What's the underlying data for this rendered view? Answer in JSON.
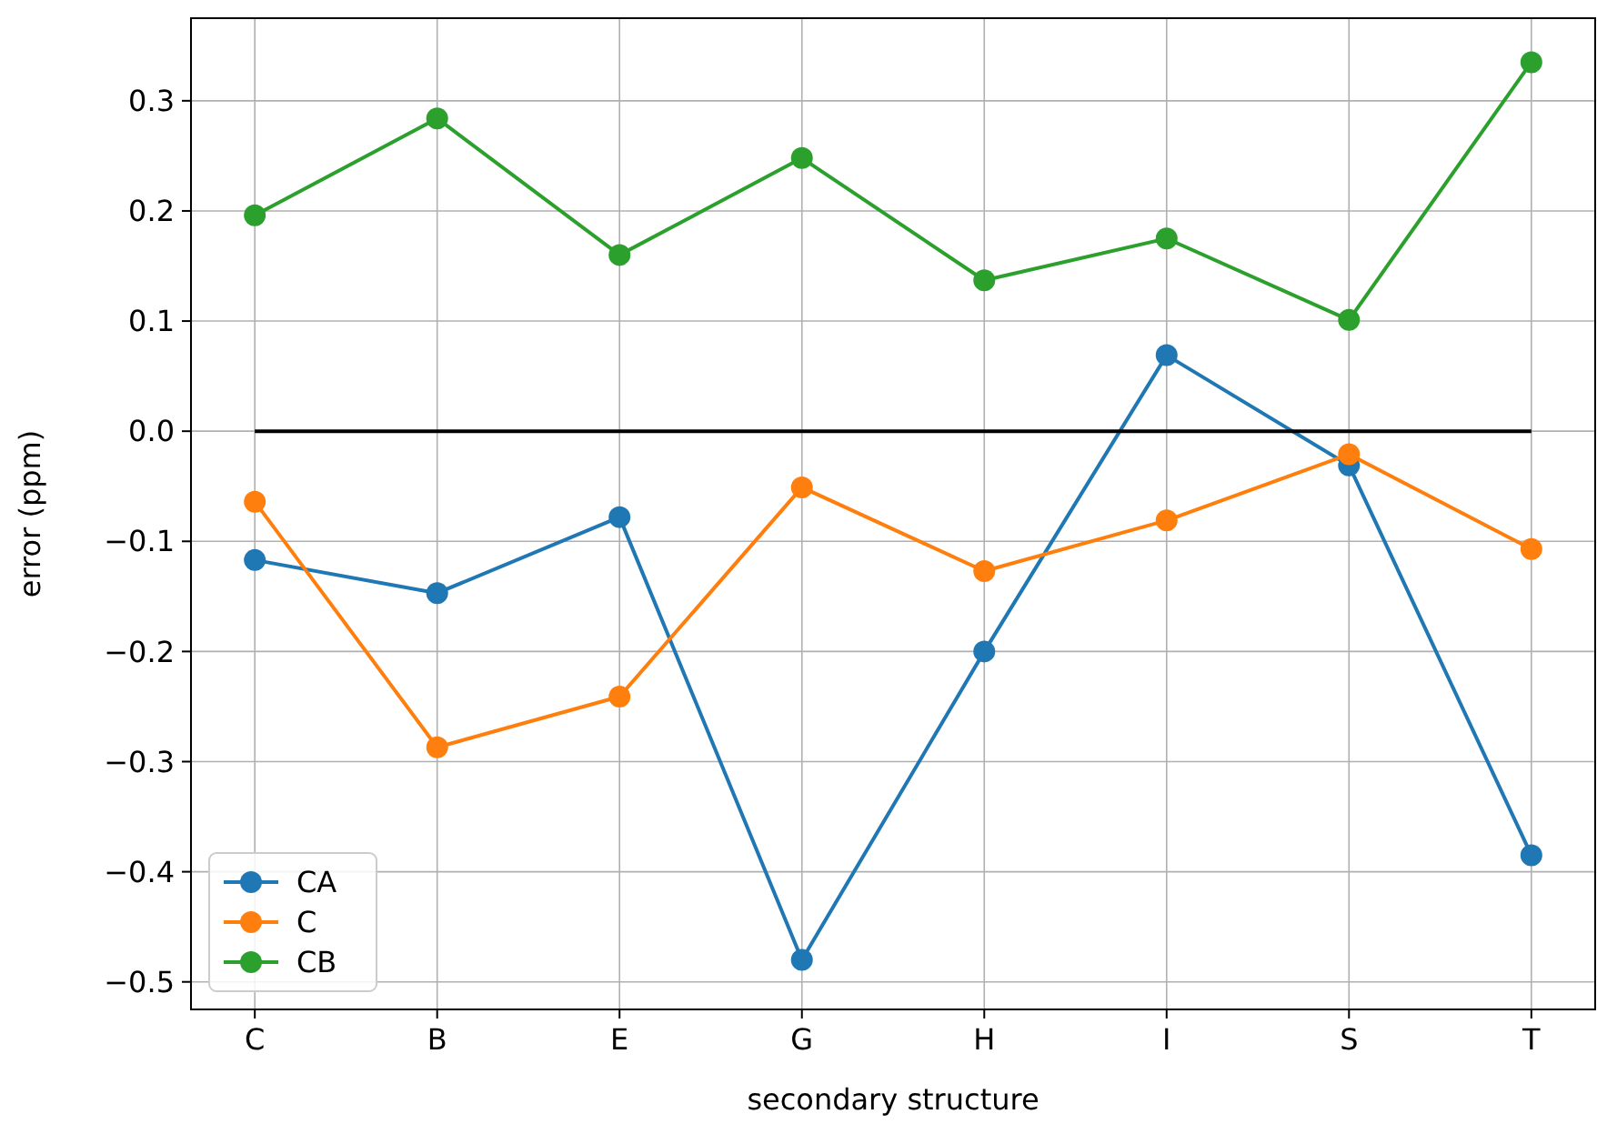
{
  "chart_data": {
    "type": "line",
    "xlabel": "secondary structure",
    "ylabel": "error (ppm)",
    "categories": [
      "C",
      "B",
      "E",
      "G",
      "H",
      "I",
      "S",
      "T"
    ],
    "series": [
      {
        "name": "CA",
        "color": "#1f77b4",
        "values": [
          -0.117,
          -0.147,
          -0.078,
          -0.48,
          -0.2,
          0.069,
          -0.031,
          -0.385
        ]
      },
      {
        "name": "C",
        "color": "#ff7f0e",
        "values": [
          -0.064,
          -0.287,
          -0.241,
          -0.051,
          -0.127,
          -0.081,
          -0.021,
          -0.107
        ]
      },
      {
        "name": "CB",
        "color": "#2ca02c",
        "values": [
          0.196,
          0.284,
          0.16,
          0.248,
          0.137,
          0.175,
          0.101,
          0.335
        ]
      },
      {
        "color": "#000000",
        "marker": "none",
        "values": [
          0,
          0,
          0,
          0,
          0,
          0,
          0,
          0
        ]
      }
    ],
    "ylim": [
      -0.525,
      0.375
    ],
    "yticks": [
      {
        "value": -0.5,
        "label": "−0.5"
      },
      {
        "value": -0.4,
        "label": "−0.4"
      },
      {
        "value": -0.3,
        "label": "−0.3"
      },
      {
        "value": -0.2,
        "label": "−0.2"
      },
      {
        "value": -0.1,
        "label": "−0.1"
      },
      {
        "value": 0,
        "label": "0.0"
      },
      {
        "value": 0.1,
        "label": "0.1"
      },
      {
        "value": 0.2,
        "label": "0.2"
      },
      {
        "value": 0.3,
        "label": "0.3"
      }
    ],
    "grid": true,
    "legend": "bottom left",
    "marker": "circle",
    "line_style": "solid"
  }
}
